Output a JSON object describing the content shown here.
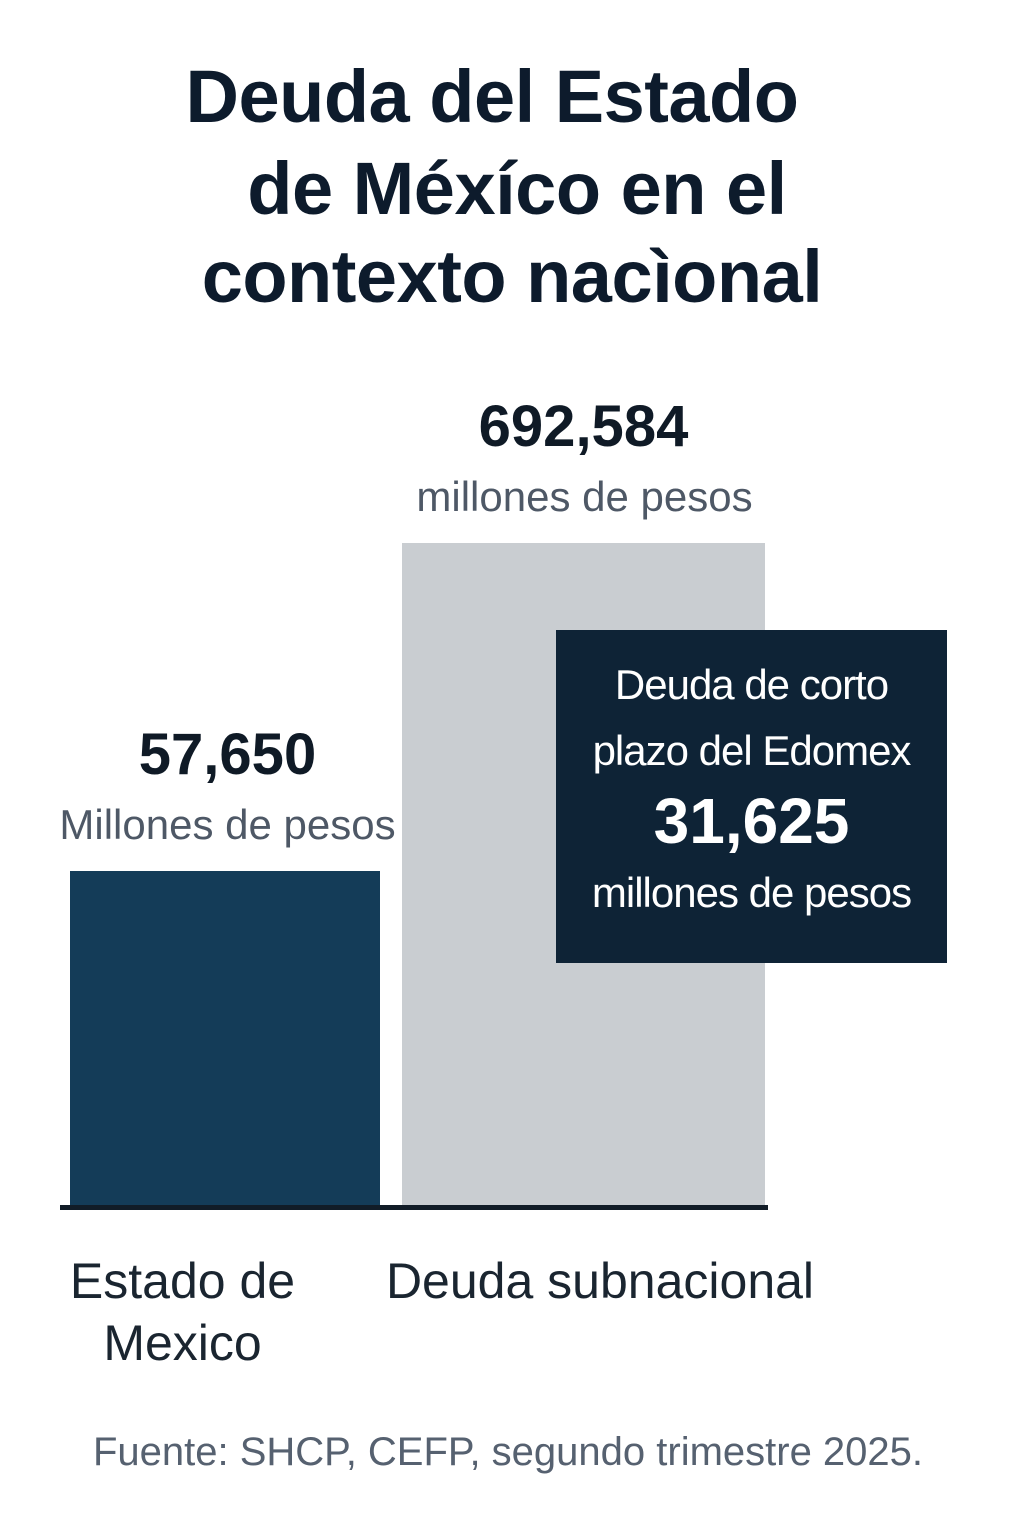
{
  "chart_data": {
    "type": "bar",
    "title": "Deuda del Estado de Méxíco en el contexto nacìonal",
    "title_lines": [
      "Deuda del Estado",
      "de Méxíco en el",
      "contexto nacìonal"
    ],
    "categories": [
      "Estado de Mexico",
      "Deuda subnacional"
    ],
    "category_lines": [
      [
        "Estado de",
        "Mexico"
      ],
      [
        "Deuda subnacional"
      ]
    ],
    "values": [
      57650,
      692584
    ],
    "value_labels": [
      "57,650",
      "692,584"
    ],
    "unit_labels": [
      "Millones de pesos",
      "millones de pesos"
    ],
    "colors": [
      "#143c58",
      "#c9cdd1"
    ],
    "annotation": {
      "lines": [
        "Deuda de corto",
        "plazo del Edomex"
      ],
      "value": 31625,
      "value_label": "31,625",
      "unit": "millones de pesos"
    },
    "source": "Fuente: SHCP, CEFP, segundo trimestre 2025.",
    "xlabel": "",
    "ylabel": "",
    "grid": false
  }
}
